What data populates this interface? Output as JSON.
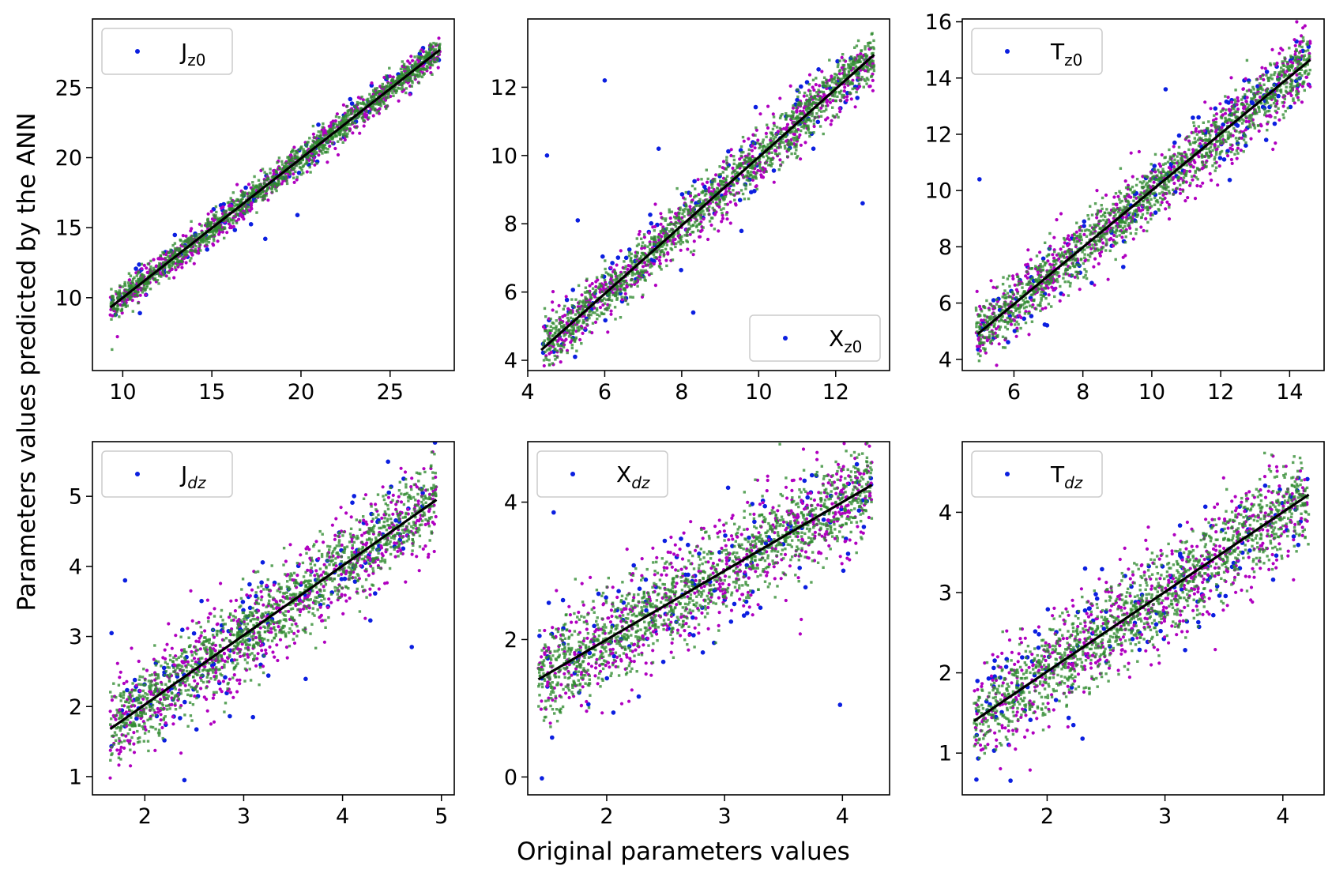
{
  "figure": {
    "xlabel": "Original parameters values",
    "ylabel": "Parameters values predicted by the ANN"
  },
  "colors": {
    "blue": "#0b1fe0",
    "magenta": "#b000c0",
    "green": "#2f8a2f",
    "fit": "#000000"
  },
  "chart_data": [
    {
      "type": "scatter",
      "legend": {
        "base": "J",
        "sub": "z0",
        "italic_sub": false,
        "position": "upper-left"
      },
      "xlim": [
        8.3,
        28.6
      ],
      "ylim": [
        4.8,
        29.9
      ],
      "xticks": [
        10,
        15,
        20,
        25
      ],
      "yticks": [
        10,
        15,
        20,
        25
      ],
      "fit_line": {
        "x": [
          9.3,
          27.8
        ],
        "y": [
          9.3,
          27.7
        ]
      },
      "series": [
        {
          "marker": "dot",
          "color": "blue",
          "x_range": [
            9.3,
            27.8
          ],
          "spread": 0.7,
          "count": 110,
          "outliers": [
            [
              9.6,
              8.8
            ],
            [
              19.8,
              15.9
            ],
            [
              18.0,
              14.2
            ]
          ]
        },
        {
          "marker": "star",
          "color": "magenta",
          "x_range": [
            9.3,
            27.8
          ],
          "spread": 0.6,
          "count": 650,
          "outliers": []
        },
        {
          "marker": "square",
          "color": "green",
          "x_range": [
            9.3,
            27.8
          ],
          "spread": 0.5,
          "count": 1300,
          "outliers": [
            [
              9.4,
              6.3
            ]
          ]
        }
      ]
    },
    {
      "type": "scatter",
      "legend": {
        "base": "X",
        "sub": "z0",
        "italic_sub": false,
        "position": "lower-right"
      },
      "xlim": [
        4.0,
        13.4
      ],
      "ylim": [
        3.7,
        14.0
      ],
      "xticks": [
        4,
        6,
        8,
        10,
        12
      ],
      "yticks": [
        4,
        6,
        8,
        10,
        12
      ],
      "fit_line": {
        "x": [
          4.35,
          13.0
        ],
        "y": [
          4.3,
          12.95
        ]
      },
      "series": [
        {
          "marker": "dot",
          "color": "blue",
          "x_range": [
            4.4,
            13.0
          ],
          "spread": 0.55,
          "count": 120,
          "outliers": [
            [
              6.0,
              12.2
            ],
            [
              4.5,
              10.0
            ],
            [
              12.7,
              8.6
            ],
            [
              7.4,
              10.2
            ],
            [
              5.3,
              8.1
            ],
            [
              8.3,
              5.4
            ]
          ]
        },
        {
          "marker": "star",
          "color": "magenta",
          "x_range": [
            4.4,
            13.0
          ],
          "spread": 0.45,
          "count": 650,
          "outliers": []
        },
        {
          "marker": "square",
          "color": "green",
          "x_range": [
            4.4,
            13.0
          ],
          "spread": 0.38,
          "count": 1300,
          "outliers": []
        }
      ]
    },
    {
      "type": "scatter",
      "legend": {
        "base": "T",
        "sub": "z0",
        "italic_sub": false,
        "position": "upper-left"
      },
      "xlim": [
        4.5,
        15.0
      ],
      "ylim": [
        3.6,
        16.1
      ],
      "xticks": [
        6,
        8,
        10,
        12,
        14
      ],
      "yticks": [
        4,
        6,
        8,
        10,
        12,
        14,
        16
      ],
      "fit_line": {
        "x": [
          4.95,
          14.6
        ],
        "y": [
          4.9,
          14.65
        ]
      },
      "series": [
        {
          "marker": "dot",
          "color": "blue",
          "x_range": [
            4.9,
            14.6
          ],
          "spread": 0.75,
          "count": 130,
          "outliers": [
            [
              5.0,
              10.4
            ],
            [
              10.4,
              13.6
            ],
            [
              14.2,
              15.3
            ]
          ]
        },
        {
          "marker": "star",
          "color": "magenta",
          "x_range": [
            4.9,
            14.6
          ],
          "spread": 0.65,
          "count": 650,
          "outliers": []
        },
        {
          "marker": "square",
          "color": "green",
          "x_range": [
            4.9,
            14.6
          ],
          "spread": 0.5,
          "count": 1300,
          "outliers": []
        }
      ]
    },
    {
      "type": "scatter",
      "legend": {
        "base": "J",
        "sub": "dz",
        "italic_sub": true,
        "position": "upper-left"
      },
      "xlim": [
        1.47,
        5.13
      ],
      "ylim": [
        0.74,
        5.78
      ],
      "xticks": [
        2,
        3,
        4,
        5
      ],
      "yticks": [
        1,
        2,
        3,
        4,
        5
      ],
      "fit_line": {
        "x": [
          1.65,
          4.95
        ],
        "y": [
          1.68,
          4.95
        ]
      },
      "series": [
        {
          "marker": "dot",
          "color": "blue",
          "x_range": [
            1.65,
            4.95
          ],
          "spread": 0.45,
          "count": 140,
          "outliers": [
            [
              2.4,
              0.95
            ],
            [
              4.7,
              2.85
            ],
            [
              1.8,
              3.8
            ]
          ]
        },
        {
          "marker": "star",
          "color": "magenta",
          "x_range": [
            1.65,
            4.95
          ],
          "spread": 0.35,
          "count": 650,
          "outliers": [
            [
              1.65,
              0.98
            ]
          ]
        },
        {
          "marker": "square",
          "color": "green",
          "x_range": [
            1.65,
            4.95
          ],
          "spread": 0.28,
          "count": 1300,
          "outliers": []
        }
      ]
    },
    {
      "type": "scatter",
      "legend": {
        "base": "X",
        "sub": "dz",
        "italic_sub": true,
        "position": "upper-left"
      },
      "xlim": [
        1.33,
        4.4
      ],
      "ylim": [
        -0.26,
        4.88
      ],
      "xticks": [
        2,
        3,
        4
      ],
      "yticks": [
        0,
        2,
        4
      ],
      "fit_line": {
        "x": [
          1.42,
          4.25
        ],
        "y": [
          1.42,
          4.25
        ]
      },
      "series": [
        {
          "marker": "dot",
          "color": "blue",
          "x_range": [
            1.42,
            4.25
          ],
          "spread": 0.5,
          "count": 140,
          "outliers": [
            [
              1.45,
              -0.02
            ],
            [
              1.55,
              3.85
            ],
            [
              3.98,
              1.05
            ]
          ]
        },
        {
          "marker": "star",
          "color": "magenta",
          "x_range": [
            1.42,
            4.25
          ],
          "spread": 0.4,
          "count": 650,
          "outliers": []
        },
        {
          "marker": "square",
          "color": "green",
          "x_range": [
            1.42,
            4.25
          ],
          "spread": 0.32,
          "count": 1300,
          "outliers": []
        }
      ]
    },
    {
      "type": "scatter",
      "legend": {
        "base": "T",
        "sub": "dz",
        "italic_sub": true,
        "position": "upper-left"
      },
      "xlim": [
        1.28,
        4.35
      ],
      "ylim": [
        0.48,
        4.88
      ],
      "xticks": [
        2,
        3,
        4
      ],
      "yticks": [
        1,
        2,
        3,
        4
      ],
      "fit_line": {
        "x": [
          1.38,
          4.22
        ],
        "y": [
          1.4,
          4.22
        ]
      },
      "series": [
        {
          "marker": "dot",
          "color": "blue",
          "x_range": [
            1.38,
            4.22
          ],
          "spread": 0.4,
          "count": 140,
          "outliers": [
            [
              1.4,
              0.67
            ],
            [
              1.55,
              1.03
            ],
            [
              2.3,
              1.18
            ]
          ]
        },
        {
          "marker": "star",
          "color": "magenta",
          "x_range": [
            1.38,
            4.22
          ],
          "spread": 0.35,
          "count": 650,
          "outliers": []
        },
        {
          "marker": "square",
          "color": "green",
          "x_range": [
            1.38,
            4.22
          ],
          "spread": 0.28,
          "count": 1300,
          "outliers": []
        }
      ]
    }
  ]
}
